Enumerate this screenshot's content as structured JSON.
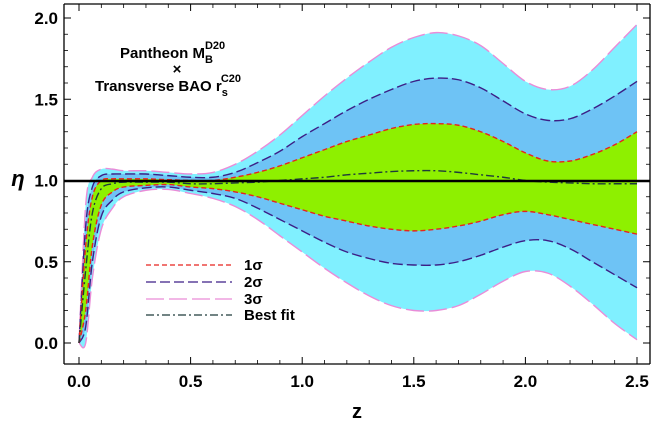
{
  "chart_data": {
    "type": "area",
    "title": "",
    "xlabel": "z",
    "ylabel": "η",
    "xlim": [
      0,
      2.5
    ],
    "ylim": [
      0,
      2.0
    ],
    "x_ticks": [
      "0.0",
      "0.5",
      "1.0",
      "1.5",
      "2.0",
      "2.5"
    ],
    "y_ticks": [
      "0.0",
      "0.5",
      "1.0",
      "1.5",
      "2.0"
    ],
    "reference_line": 1.0,
    "annotation": {
      "line1": "Pantheon M",
      "line1_sub": "B",
      "line1_sup": "D20",
      "cross": "×",
      "line2": "Transverse BAO r",
      "line2_sub": "s",
      "line2_sup": "C20"
    },
    "legend": {
      "placement": "bottom-left",
      "entries": [
        "1σ",
        "2σ",
        "3σ",
        "Best fit"
      ]
    },
    "x": [
      0,
      0.03,
      0.06,
      0.1,
      0.15,
      0.2,
      0.3,
      0.4,
      0.5,
      0.6,
      0.7,
      0.8,
      0.9,
      1.0,
      1.1,
      1.2,
      1.3,
      1.4,
      1.5,
      1.6,
      1.7,
      1.8,
      1.9,
      2.0,
      2.1,
      2.2,
      2.3,
      2.4,
      2.5
    ],
    "series": [
      {
        "name": "Best fit",
        "values": [
          0.0,
          0.45,
          0.8,
          0.95,
          0.98,
          0.99,
          0.99,
          0.99,
          0.98,
          0.98,
          0.985,
          0.99,
          1.0,
          1.01,
          1.02,
          1.035,
          1.045,
          1.055,
          1.06,
          1.06,
          1.05,
          1.035,
          1.02,
          1.0,
          0.99,
          0.985,
          0.98,
          0.98,
          0.98
        ]
      },
      {
        "name": "1σ",
        "upper": [
          0.0,
          0.6,
          0.9,
          1.0,
          1.01,
          1.01,
          1.01,
          1.005,
          1.0,
          1.0,
          1.02,
          1.05,
          1.09,
          1.14,
          1.19,
          1.24,
          1.28,
          1.32,
          1.345,
          1.35,
          1.34,
          1.3,
          1.24,
          1.17,
          1.12,
          1.12,
          1.16,
          1.22,
          1.3
        ],
        "lower": [
          0.0,
          0.2,
          0.6,
          0.85,
          0.93,
          0.96,
          0.97,
          0.975,
          0.96,
          0.95,
          0.93,
          0.9,
          0.86,
          0.82,
          0.78,
          0.75,
          0.72,
          0.7,
          0.69,
          0.7,
          0.72,
          0.75,
          0.79,
          0.81,
          0.79,
          0.76,
          0.73,
          0.7,
          0.67
        ]
      },
      {
        "name": "2σ",
        "upper": [
          0.0,
          0.72,
          0.96,
          1.03,
          1.04,
          1.04,
          1.04,
          1.03,
          1.02,
          1.02,
          1.05,
          1.11,
          1.18,
          1.27,
          1.35,
          1.43,
          1.5,
          1.56,
          1.61,
          1.63,
          1.62,
          1.57,
          1.49,
          1.41,
          1.37,
          1.38,
          1.44,
          1.52,
          1.61
        ],
        "lower": [
          0.0,
          0.1,
          0.5,
          0.78,
          0.88,
          0.93,
          0.955,
          0.96,
          0.94,
          0.92,
          0.89,
          0.83,
          0.76,
          0.69,
          0.62,
          0.56,
          0.52,
          0.49,
          0.48,
          0.48,
          0.5,
          0.54,
          0.59,
          0.63,
          0.63,
          0.58,
          0.5,
          0.42,
          0.34
        ]
      },
      {
        "name": "3σ",
        "upper": [
          0.0,
          0.85,
          1.02,
          1.07,
          1.07,
          1.06,
          1.06,
          1.05,
          1.04,
          1.05,
          1.1,
          1.18,
          1.28,
          1.4,
          1.52,
          1.63,
          1.73,
          1.82,
          1.88,
          1.91,
          1.89,
          1.83,
          1.72,
          1.61,
          1.56,
          1.58,
          1.68,
          1.82,
          1.96
        ],
        "lower": [
          0.0,
          0.0,
          0.4,
          0.7,
          0.83,
          0.9,
          0.94,
          0.945,
          0.92,
          0.89,
          0.84,
          0.76,
          0.66,
          0.56,
          0.46,
          0.37,
          0.29,
          0.23,
          0.2,
          0.2,
          0.23,
          0.3,
          0.38,
          0.44,
          0.43,
          0.35,
          0.24,
          0.12,
          0.02
        ]
      }
    ],
    "colors": {
      "band_3sigma": "#80f0ff",
      "band_2sigma": "#6ec3f5",
      "band_1sigma": "#8ef000",
      "line_1sigma": "#e8231d",
      "line_2sigma": "#3c1f86",
      "line_3sigma": "#e98cd8",
      "best_fit": "#1f3b3b",
      "reference": "#000000"
    }
  }
}
